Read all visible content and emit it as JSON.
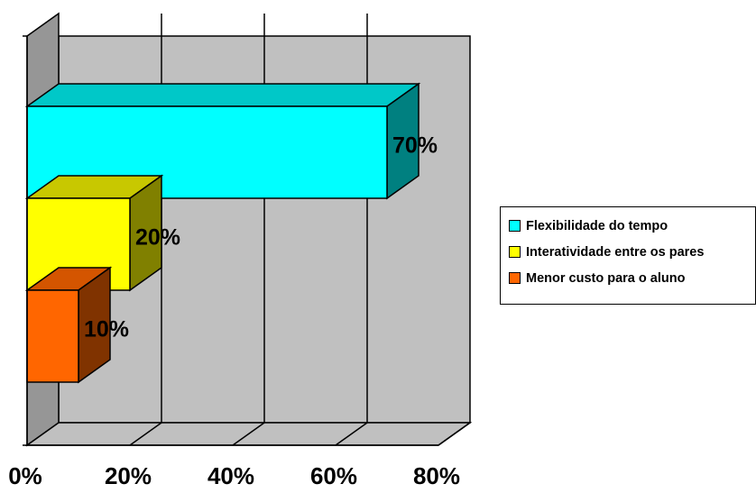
{
  "chart_data": {
    "type": "bar",
    "orientation": "horizontal",
    "three_d": true,
    "categories": [
      "Flexibilidade do tempo",
      "Interatividade entre os pares",
      "Menor custo para o aluno"
    ],
    "values": [
      70,
      20,
      10
    ],
    "value_labels": [
      "70%",
      "20%",
      "10%"
    ],
    "colors": {
      "front": [
        "#00ffff",
        "#ffff00",
        "#ff6600"
      ],
      "top": [
        "#00c8c8",
        "#c8c800",
        "#d45500"
      ],
      "side": [
        "#008080",
        "#808000",
        "#803300"
      ],
      "plot_wall": "#c0c0c0",
      "left_wall": "#969696"
    },
    "x_ticks": [
      "0%",
      "20%",
      "40%",
      "60%",
      "80%"
    ],
    "xlim": [
      0,
      80
    ],
    "grid": true,
    "legend": {
      "position": "right",
      "entries": [
        "Flexibilidade do tempo",
        "Interatividade entre os pares",
        "Menor custo para o aluno"
      ]
    },
    "title": "",
    "xlabel": "",
    "ylabel": ""
  }
}
